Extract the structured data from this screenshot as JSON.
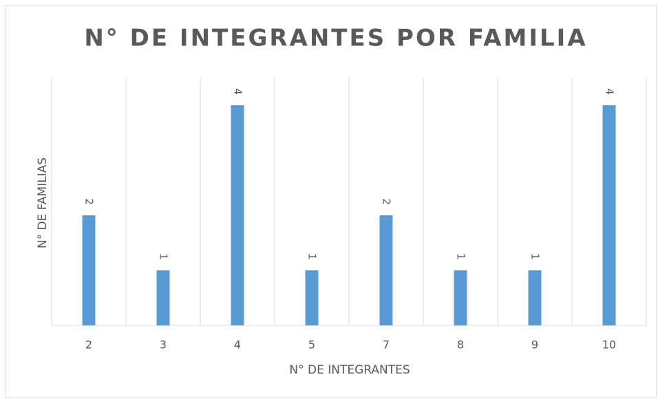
{
  "chart_data": {
    "type": "bar",
    "title": "N° DE INTEGRANTES POR FAMILIA",
    "x_label": "N° DE INTEGRANTES",
    "y_label": "N° DE FAMILIAS",
    "categories": [
      "2",
      "3",
      "4",
      "5",
      "7",
      "8",
      "9",
      "10"
    ],
    "values": [
      2,
      1,
      4,
      1,
      2,
      1,
      1,
      4
    ],
    "color": "#5b9bd5",
    "ylim": [
      0,
      4.5
    ],
    "data_labels": true
  }
}
